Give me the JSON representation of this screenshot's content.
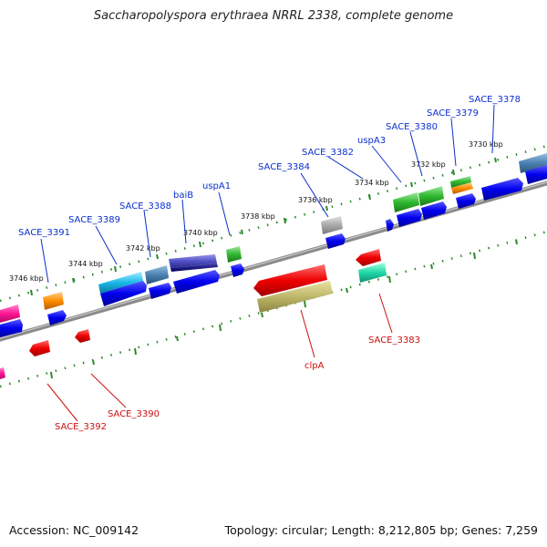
{
  "title": "Saccharopolyspora erythraea NRRL 2338, complete genome",
  "footer": {
    "accession": "Accession: NC_009142",
    "summary": "Topology: circular; Length: 8,212,805 bp; Genes: 7,259"
  },
  "kbp_labels": [
    "3746 kbp",
    "3744 kbp",
    "3742 kbp",
    "3740 kbp",
    "3738 kbp",
    "3736 kbp",
    "3734 kbp",
    "3732 kbp",
    "3730 kbp"
  ],
  "upper_gene_labels": [
    "SACE_3391",
    "SACE_3389",
    "SACE_3388",
    "baiB",
    "uspA1",
    "SACE_3384",
    "SACE_3382",
    "uspA3",
    "SACE_3380",
    "SACE_3379",
    "SACE_3378"
  ],
  "lower_gene_labels": [
    "SACE_3392",
    "SACE_3390",
    "clpA",
    "SACE_3383"
  ],
  "colors": {
    "upper_label": "#0a2fcc",
    "lower_label": "#cc0f0f",
    "backbone": "#8a8a8a",
    "ticks": "#2d8a2d",
    "cds": "#0000ee"
  }
}
